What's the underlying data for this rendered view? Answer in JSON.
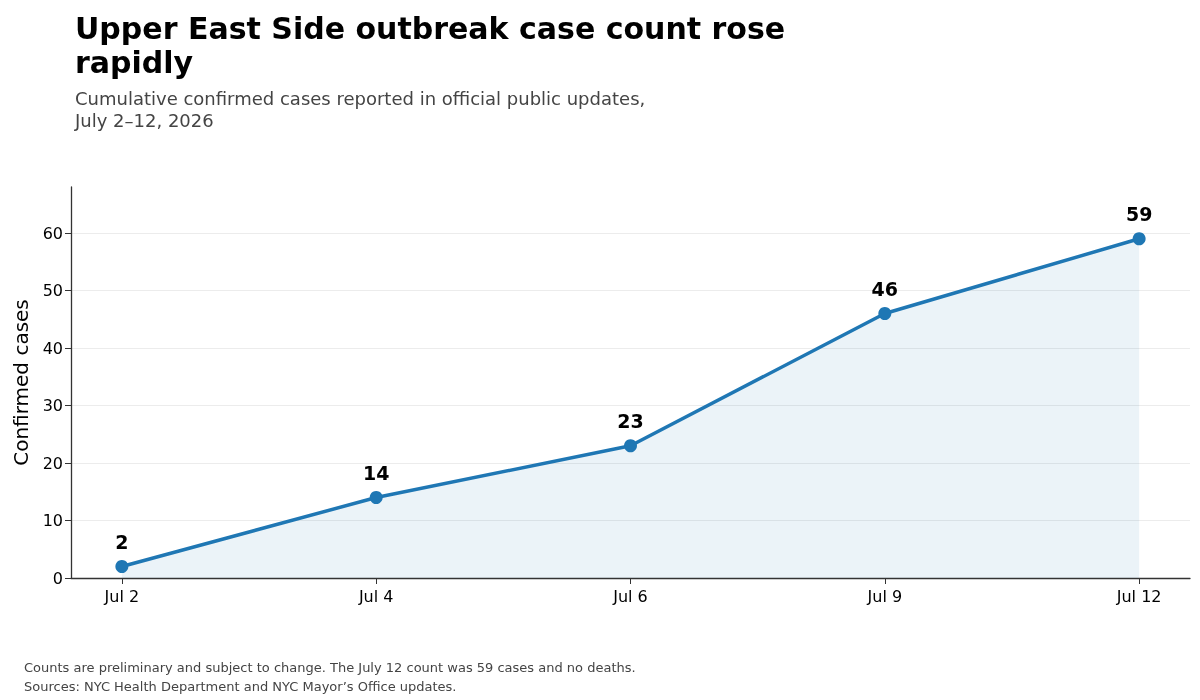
{
  "chart_data": {
    "type": "area",
    "title": "Upper East Side outbreak case count rose rapidly",
    "subtitle": "Cumulative confirmed cases reported in official public updates, July 2–12, 2026",
    "ylabel": "Confirmed cases",
    "categories": [
      "Jul 2",
      "Jul 4",
      "Jul 6",
      "Jul 9",
      "Jul 12"
    ],
    "series": [
      {
        "color": "#1f77b4",
        "values": [
          2,
          14,
          23,
          46,
          59
        ]
      }
    ],
    "ylim": [
      0,
      68
    ],
    "yticks": [
      0,
      10,
      20,
      30,
      40,
      50,
      60
    ],
    "grid": "y",
    "marker": "circle",
    "line_style": "solid",
    "data_labels": true,
    "annotations": [
      "Counts are preliminary and subject to change. The July 12 count was 59 cases and no deaths.",
      "Sources: NYC Health Department and NYC Mayor’s Office updates."
    ]
  }
}
